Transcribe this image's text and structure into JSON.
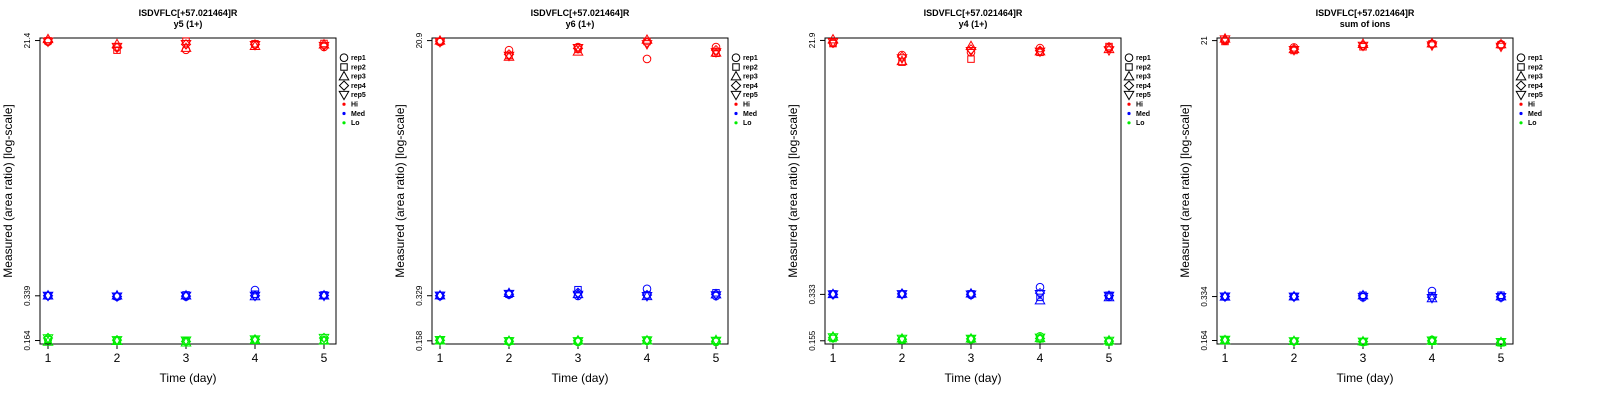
{
  "legend": {
    "items": [
      {
        "label": "rep1",
        "symbol": "circle"
      },
      {
        "label": "rep2",
        "symbol": "square"
      },
      {
        "label": "rep3",
        "symbol": "triangle-up"
      },
      {
        "label": "rep4",
        "symbol": "diamond"
      },
      {
        "label": "rep5",
        "symbol": "triangle-down"
      },
      {
        "label": "Hi",
        "symbol": "dot",
        "color": "#ff0000"
      },
      {
        "label": "Med",
        "symbol": "dot",
        "color": "#0000ff"
      },
      {
        "label": "Lo",
        "symbol": "dot",
        "color": "#00ee00"
      }
    ]
  },
  "colors": {
    "Hi": "#ff0000",
    "Med": "#0000ff",
    "Lo": "#00ee00"
  },
  "chart_data": [
    {
      "type": "scatter",
      "title": "ISDVFLC[+57.021464]R",
      "subtitle": "y5 (1+)",
      "xlabel": "Time (day)",
      "ylabel": "Measured (area ratio) [log-scale]",
      "log_y": true,
      "x_ticks": [
        1,
        2,
        3,
        4,
        5
      ],
      "y_ticks": [
        0.164,
        0.339,
        21.4
      ],
      "y_tick_labels": [
        "0.164",
        "0.339",
        "21.4"
      ],
      "ylim": [
        0.155,
        22.3
      ],
      "legend_position": "right",
      "grid": false,
      "series": [
        {
          "name": "Hi",
          "color": "#ff0000",
          "points": {
            "rep1": [
              21.0,
              19.3,
              18.4,
              20.0,
              19.3
            ],
            "rep2": [
              21.3,
              18.3,
              21.2,
              20.3,
              20.4
            ],
            "rep3": [
              21.9,
              20.2,
              19.0,
              19.6,
              20.1
            ],
            "rep4": [
              21.1,
              19.0,
              20.1,
              20.1,
              19.9
            ],
            "rep5": [
              21.0,
              19.3,
              20.2,
              19.9,
              19.6
            ]
          }
        },
        {
          "name": "Med",
          "color": "#0000ff",
          "points": {
            "rep1": [
              0.339,
              0.334,
              0.335,
              0.372,
              0.341
            ],
            "rep2": [
              0.339,
              0.336,
              0.344,
              0.348,
              0.344
            ],
            "rep3": [
              0.341,
              0.341,
              0.341,
              0.337,
              0.341
            ],
            "rep4": [
              0.339,
              0.335,
              0.337,
              0.339,
              0.341
            ],
            "rep5": [
              0.339,
              0.335,
              0.339,
              0.339,
              0.339
            ]
          }
        },
        {
          "name": "Lo",
          "color": "#00ee00",
          "points": {
            "rep1": [
              0.168,
              0.163,
              0.163,
              0.166,
              0.165
            ],
            "rep2": [
              0.166,
              0.164,
              0.162,
              0.165,
              0.164
            ],
            "rep3": [
              0.161,
              0.163,
              0.159,
              0.166,
              0.164
            ],
            "rep4": [
              0.171,
              0.165,
              0.161,
              0.167,
              0.171
            ],
            "rep5": [
              0.17,
              0.165,
              0.164,
              0.167,
              0.171
            ]
          }
        }
      ]
    },
    {
      "type": "scatter",
      "title": "ISDVFLC[+57.021464]R",
      "subtitle": "y6 (1+)",
      "xlabel": "Time (day)",
      "ylabel": "Measured (area ratio) [log-scale]",
      "log_y": true,
      "x_ticks": [
        1,
        2,
        3,
        4,
        5
      ],
      "y_ticks": [
        0.158,
        0.329,
        20.9
      ],
      "y_tick_labels": [
        "0.158",
        "0.329",
        "20.9"
      ],
      "ylim": [
        0.15,
        21.8
      ],
      "legend_position": "right",
      "grid": false,
      "series": [
        {
          "name": "Hi",
          "color": "#ff0000",
          "points": {
            "rep1": [
              20.4,
              17.9,
              18.8,
              15.5,
              18.8
            ],
            "rep2": [
              20.6,
              16.4,
              18.1,
              20.6,
              17.0
            ],
            "rep3": [
              20.9,
              16.1,
              17.5,
              21.2,
              17.2
            ],
            "rep4": [
              20.7,
              16.7,
              18.4,
              20.2,
              17.9
            ],
            "rep5": [
              20.4,
              16.3,
              18.5,
              19.7,
              17.3
            ]
          }
        },
        {
          "name": "Med",
          "color": "#0000ff",
          "points": {
            "rep1": [
              0.327,
              0.335,
              0.328,
              0.368,
              0.327
            ],
            "rep2": [
              0.331,
              0.337,
              0.363,
              0.333,
              0.345
            ],
            "rep3": [
              0.331,
              0.344,
              0.338,
              0.327,
              0.337
            ],
            "rep4": [
              0.329,
              0.337,
              0.346,
              0.333,
              0.337
            ],
            "rep5": [
              0.329,
              0.339,
              0.334,
              0.327,
              0.331
            ]
          }
        },
        {
          "name": "Lo",
          "color": "#00ee00",
          "points": {
            "rep1": [
              0.16,
              0.156,
              0.155,
              0.158,
              0.155
            ],
            "rep2": [
              0.16,
              0.158,
              0.157,
              0.16,
              0.158
            ],
            "rep3": [
              0.159,
              0.158,
              0.159,
              0.159,
              0.16
            ],
            "rep4": [
              0.159,
              0.157,
              0.158,
              0.158,
              0.157
            ],
            "rep5": [
              0.16,
              0.157,
              0.157,
              0.159,
              0.158
            ]
          }
        }
      ]
    },
    {
      "type": "scatter",
      "title": "ISDVFLC[+57.021464]R",
      "subtitle": "y4 (1+)",
      "xlabel": "Time (day)",
      "ylabel": "Measured (area ratio) [log-scale]",
      "log_y": true,
      "x_ticks": [
        1,
        2,
        3,
        4,
        5
      ],
      "y_ticks": [
        0.155,
        0.333,
        21.9
      ],
      "y_tick_labels": [
        "0.155",
        "0.333",
        "21.9"
      ],
      "ylim": [
        0.147,
        22.8
      ],
      "legend_position": "right",
      "grid": false,
      "series": [
        {
          "name": "Hi",
          "color": "#ff0000",
          "points": {
            "rep1": [
              21.0,
              17.2,
              18.0,
              19.3,
              19.4
            ],
            "rep2": [
              20.8,
              15.3,
              16.1,
              18.0,
              19.8
            ],
            "rep3": [
              22.3,
              15.6,
              20.0,
              18.3,
              19.0
            ],
            "rep4": [
              21.0,
              16.7,
              18.9,
              18.5,
              19.6
            ],
            "rep5": [
              21.3,
              16.3,
              18.4,
              18.2,
              18.6
            ]
          }
        },
        {
          "name": "Med",
          "color": "#0000ff",
          "points": {
            "rep1": [
              0.333,
              0.335,
              0.33,
              0.375,
              0.32
            ],
            "rep2": [
              0.336,
              0.333,
              0.336,
              0.317,
              0.328
            ],
            "rep3": [
              0.335,
              0.337,
              0.338,
              0.302,
              0.318
            ],
            "rep4": [
              0.333,
              0.336,
              0.334,
              0.34,
              0.327
            ],
            "rep5": [
              0.333,
              0.334,
              0.332,
              0.335,
              0.325
            ]
          }
        },
        {
          "name": "Lo",
          "color": "#00ee00",
          "points": {
            "rep1": [
              0.164,
              0.158,
              0.159,
              0.167,
              0.153
            ],
            "rep2": [
              0.161,
              0.157,
              0.159,
              0.16,
              0.152
            ],
            "rep3": [
              0.166,
              0.161,
              0.161,
              0.162,
              0.156
            ],
            "rep4": [
              0.163,
              0.159,
              0.16,
              0.161,
              0.154
            ],
            "rep5": [
              0.164,
              0.16,
              0.16,
              0.163,
              0.155
            ]
          }
        }
      ]
    },
    {
      "type": "scatter",
      "title": "ISDVFLC[+57.021464]R",
      "subtitle": "sum of ions",
      "xlabel": "Time (day)",
      "ylabel": "Measured (area ratio) [log-scale]",
      "log_y": true,
      "x_ticks": [
        1,
        2,
        3,
        4,
        5
      ],
      "y_ticks": [
        0.164,
        0.334,
        21
      ],
      "y_tick_labels": [
        "0.164",
        "0.334",
        "21"
      ],
      "ylim": [
        0.155,
        21.9
      ],
      "legend_position": "right",
      "grid": false,
      "series": [
        {
          "name": "Hi",
          "color": "#ff0000",
          "points": {
            "rep1": [
              21.0,
              18.8,
              19.4,
              19.9,
              19.8
            ],
            "rep2": [
              20.7,
              17.9,
              19.0,
              19.9,
              19.6
            ],
            "rep3": [
              21.7,
              18.3,
              19.9,
              20.1,
              19.8
            ],
            "rep4": [
              21.2,
              18.3,
              19.3,
              19.9,
              19.6
            ],
            "rep5": [
              21.4,
              18.0,
              19.3,
              19.4,
              19.0
            ]
          }
        },
        {
          "name": "Med",
          "color": "#0000ff",
          "points": {
            "rep1": [
              0.333,
              0.333,
              0.33,
              0.365,
              0.329
            ],
            "rep2": [
              0.335,
              0.334,
              0.341,
              0.339,
              0.341
            ],
            "rep3": [
              0.334,
              0.335,
              0.341,
              0.325,
              0.335
            ],
            "rep4": [
              0.334,
              0.334,
              0.338,
              0.331,
              0.332
            ],
            "rep5": [
              0.334,
              0.333,
              0.332,
              0.326,
              0.331
            ]
          }
        },
        {
          "name": "Lo",
          "color": "#00ee00",
          "points": {
            "rep1": [
              0.166,
              0.162,
              0.16,
              0.166,
              0.159
            ],
            "rep2": [
              0.165,
              0.162,
              0.16,
              0.162,
              0.158
            ],
            "rep3": [
              0.165,
              0.163,
              0.162,
              0.164,
              0.16
            ],
            "rep4": [
              0.165,
              0.162,
              0.161,
              0.163,
              0.159
            ],
            "rep5": [
              0.166,
              0.162,
              0.161,
              0.164,
              0.16
            ]
          }
        }
      ]
    }
  ]
}
